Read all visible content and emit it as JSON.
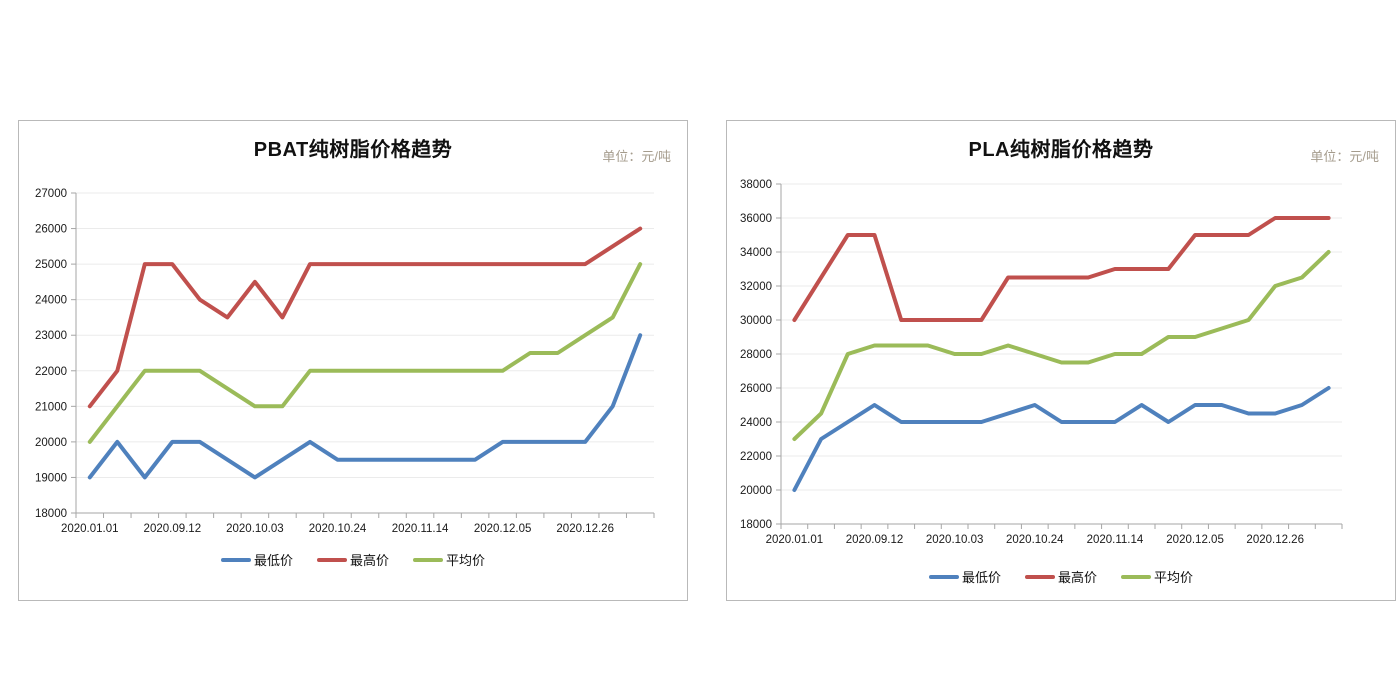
{
  "page": {
    "background": "#ffffff"
  },
  "charts": [
    {
      "title": "PBAT纯树脂价格趋势",
      "unit_label": "单位：元/吨",
      "y_axis": {
        "min": 18000,
        "max": 27000,
        "step": 1000
      },
      "x_axis": {
        "tick_labels": [
          "2020.01.01",
          "2020.09.12",
          "2020.10.03",
          "2020.10.24",
          "2020.11.14",
          "2020.12.05",
          "2020.12.26"
        ],
        "label_every": 3,
        "n_points": 21
      },
      "series": [
        {
          "name": "最低价",
          "color": "#4F81BD",
          "values": [
            19000,
            20000,
            19000,
            20000,
            20000,
            19500,
            19000,
            19500,
            20000,
            19500,
            19500,
            19500,
            19500,
            19500,
            19500,
            20000,
            20000,
            20000,
            20000,
            21000,
            23000
          ]
        },
        {
          "name": "最高价",
          "color": "#C0504D",
          "values": [
            21000,
            22000,
            25000,
            25000,
            24000,
            23500,
            24500,
            23500,
            25000,
            25000,
            25000,
            25000,
            25000,
            25000,
            25000,
            25000,
            25000,
            25000,
            25000,
            25500,
            26000
          ]
        },
        {
          "name": "平均价",
          "color": "#9BBB59",
          "values": [
            20000,
            21000,
            22000,
            22000,
            22000,
            21500,
            21000,
            21000,
            22000,
            22000,
            22000,
            22000,
            22000,
            22000,
            22000,
            22000,
            22500,
            22500,
            23000,
            23500,
            25000
          ]
        }
      ]
    },
    {
      "title": "PLA纯树脂价格趋势",
      "unit_label": "单位：元/吨",
      "y_axis": {
        "min": 18000,
        "max": 38000,
        "step": 2000
      },
      "x_axis": {
        "tick_labels": [
          "2020.01.01",
          "2020.09.12",
          "2020.10.03",
          "2020.10.24",
          "2020.11.14",
          "2020.12.05",
          "2020.12.26"
        ],
        "label_every": 3,
        "n_points": 21
      },
      "series": [
        {
          "name": "最低价",
          "color": "#4F81BD",
          "values": [
            20000,
            23000,
            24000,
            25000,
            24000,
            24000,
            24000,
            24000,
            24500,
            25000,
            24000,
            24000,
            24000,
            25000,
            24000,
            25000,
            25000,
            24500,
            24500,
            25000,
            26000
          ]
        },
        {
          "name": "最高价",
          "color": "#C0504D",
          "values": [
            30000,
            32500,
            35000,
            35000,
            30000,
            30000,
            30000,
            30000,
            32500,
            32500,
            32500,
            32500,
            33000,
            33000,
            33000,
            35000,
            35000,
            35000,
            36000,
            36000,
            36000
          ]
        },
        {
          "name": "平均价",
          "color": "#9BBB59",
          "values": [
            23000,
            24500,
            28000,
            28500,
            28500,
            28500,
            28000,
            28000,
            28500,
            28000,
            27500,
            27500,
            28000,
            28000,
            29000,
            29000,
            29500,
            30000,
            32000,
            32500,
            34000
          ]
        }
      ]
    }
  ],
  "chart_data": [
    {
      "type": "line",
      "title": "PBAT纯树脂价格趋势",
      "unit": "单位：元/吨",
      "x_tick_labels": [
        "2020.01.01",
        "2020.09.12",
        "2020.10.03",
        "2020.10.24",
        "2020.11.14",
        "2020.12.05",
        "2020.12.26"
      ],
      "x_label_point_indices": [
        0,
        3,
        6,
        9,
        12,
        15,
        18
      ],
      "n_points": 21,
      "ylim": [
        18000,
        27000
      ],
      "y_step": 1000,
      "grid": "horizontal",
      "legend_position": "bottom",
      "series": [
        {
          "name": "最低价",
          "color": "#4F81BD",
          "values": [
            19000,
            20000,
            19000,
            20000,
            20000,
            19500,
            19000,
            19500,
            20000,
            19500,
            19500,
            19500,
            19500,
            19500,
            19500,
            20000,
            20000,
            20000,
            20000,
            21000,
            23000
          ]
        },
        {
          "name": "最高价",
          "color": "#C0504D",
          "values": [
            21000,
            22000,
            25000,
            25000,
            24000,
            23500,
            24500,
            23500,
            25000,
            25000,
            25000,
            25000,
            25000,
            25000,
            25000,
            25000,
            25000,
            25000,
            25000,
            25500,
            26000
          ]
        },
        {
          "name": "平均价",
          "color": "#9BBB59",
          "values": [
            20000,
            21000,
            22000,
            22000,
            22000,
            21500,
            21000,
            21000,
            22000,
            22000,
            22000,
            22000,
            22000,
            22000,
            22000,
            22000,
            22500,
            22500,
            23000,
            23500,
            25000
          ]
        }
      ]
    },
    {
      "type": "line",
      "title": "PLA纯树脂价格趋势",
      "unit": "单位：元/吨",
      "x_tick_labels": [
        "2020.01.01",
        "2020.09.12",
        "2020.10.03",
        "2020.10.24",
        "2020.11.14",
        "2020.12.05",
        "2020.12.26"
      ],
      "x_label_point_indices": [
        0,
        3,
        6,
        9,
        12,
        15,
        18
      ],
      "n_points": 21,
      "ylim": [
        18000,
        38000
      ],
      "y_step": 2000,
      "grid": "horizontal",
      "legend_position": "bottom",
      "series": [
        {
          "name": "最低价",
          "color": "#4F81BD",
          "values": [
            20000,
            23000,
            24000,
            25000,
            24000,
            24000,
            24000,
            24000,
            24500,
            25000,
            24000,
            24000,
            24000,
            25000,
            24000,
            25000,
            25000,
            24500,
            24500,
            25000,
            26000
          ]
        },
        {
          "name": "最高价",
          "color": "#C0504D",
          "values": [
            30000,
            32500,
            35000,
            35000,
            30000,
            30000,
            30000,
            30000,
            32500,
            32500,
            32500,
            32500,
            33000,
            33000,
            33000,
            35000,
            35000,
            35000,
            36000,
            36000,
            36000
          ]
        },
        {
          "name": "平均价",
          "color": "#9BBB59",
          "values": [
            23000,
            24500,
            28000,
            28500,
            28500,
            28500,
            28000,
            28000,
            28500,
            28000,
            27500,
            27500,
            28000,
            28000,
            29000,
            29000,
            29500,
            30000,
            32000,
            32500,
            34000
          ]
        }
      ]
    }
  ]
}
